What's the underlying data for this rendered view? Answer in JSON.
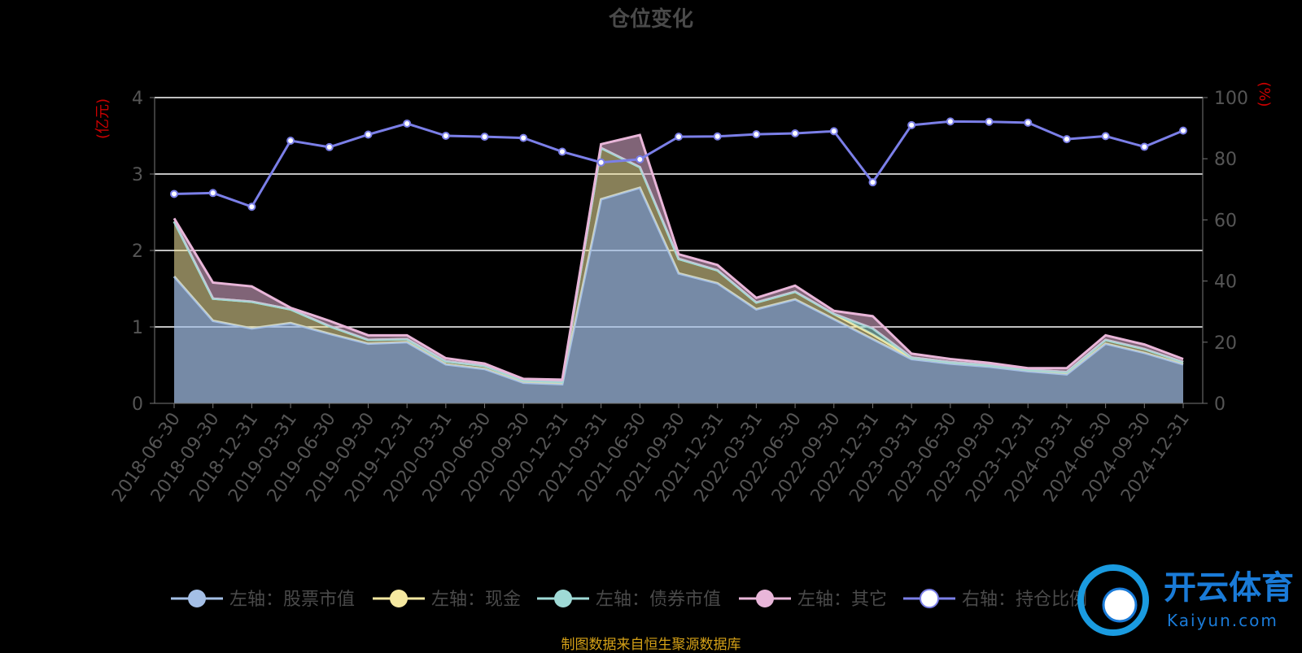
{
  "chart_data": {
    "type": "area",
    "title": "仓位变化",
    "y_left_unit": "(亿元)",
    "y_right_unit": "(%)",
    "y_left_range": [
      0,
      4
    ],
    "y_left_ticks": [
      "0",
      "1",
      "2",
      "3",
      "4"
    ],
    "y_right_range": [
      0,
      100
    ],
    "y_right_ticks": [
      "0",
      "20",
      "40",
      "60",
      "80",
      "100"
    ],
    "grid": true,
    "legend_position": "bottom",
    "categories": [
      "2018-06-30",
      "2018-09-30",
      "2018-12-31",
      "2019-03-31",
      "2019-06-30",
      "2019-09-30",
      "2019-12-31",
      "2020-03-31",
      "2020-06-30",
      "2020-09-30",
      "2020-12-31",
      "2021-03-31",
      "2021-06-30",
      "2021-09-30",
      "2021-12-31",
      "2022-03-31",
      "2022-06-30",
      "2022-09-30",
      "2022-12-31",
      "2023-03-31",
      "2023-06-30",
      "2023-09-30",
      "2023-12-31",
      "2024-03-31",
      "2024-06-30",
      "2024-09-30",
      "2024-12-31"
    ],
    "series": [
      {
        "name": "左轴：股票市值",
        "axis": "left",
        "stack": true,
        "color": "#a4bfe6",
        "values": [
          1.66,
          1.08,
          0.98,
          1.05,
          0.91,
          0.78,
          0.8,
          0.51,
          0.45,
          0.27,
          0.25,
          2.67,
          2.82,
          1.7,
          1.57,
          1.23,
          1.36,
          1.1,
          0.84,
          0.58,
          0.52,
          0.48,
          0.42,
          0.38,
          0.78,
          0.66,
          0.51
        ]
      },
      {
        "name": "左轴：现金",
        "axis": "left",
        "stack": true,
        "color": "#f5e8a0",
        "values": [
          0.72,
          0.29,
          0.35,
          0.18,
          0.1,
          0.05,
          0.04,
          0.04,
          0.04,
          0.03,
          0.03,
          0.67,
          0.27,
          0.19,
          0.17,
          0.09,
          0.1,
          0.07,
          0.06,
          0.02,
          0.02,
          0.02,
          0.02,
          0.03,
          0.05,
          0.05,
          0.03
        ]
      },
      {
        "name": "左轴：债券市值",
        "axis": "left",
        "stack": true,
        "color": "#9fdad6",
        "values": [
          0.0,
          0.0,
          0.0,
          0.0,
          0.0,
          0.0,
          0.0,
          0.0,
          0.0,
          0.0,
          0.0,
          0.0,
          0.0,
          0.0,
          0.0,
          0.0,
          0.0,
          0.0,
          0.08,
          0.0,
          0.0,
          0.0,
          0.0,
          0.0,
          0.0,
          0.0,
          0.0
        ]
      },
      {
        "name": "左轴：其它",
        "axis": "left",
        "stack": true,
        "color": "#e9b6d9",
        "values": [
          0.04,
          0.21,
          0.2,
          0.02,
          0.07,
          0.06,
          0.05,
          0.04,
          0.03,
          0.02,
          0.03,
          0.05,
          0.42,
          0.06,
          0.07,
          0.06,
          0.08,
          0.04,
          0.16,
          0.05,
          0.04,
          0.03,
          0.02,
          0.05,
          0.06,
          0.06,
          0.04
        ]
      },
      {
        "name": "右轴：持仓比例",
        "axis": "right",
        "color": "#7b7fe8",
        "values": [
          68.5,
          68.8,
          64.3,
          85.9,
          83.8,
          87.9,
          91.5,
          87.5,
          87.2,
          86.8,
          82.3,
          78.8,
          79.8,
          87.2,
          87.3,
          88.0,
          88.3,
          89.0,
          72.3,
          91.0,
          92.2,
          92.1,
          91.8,
          86.4,
          87.4,
          83.9,
          89.2
        ]
      }
    ],
    "source_note": "制图数据来自恒生聚源数据库"
  },
  "watermark": {
    "cn": "开云体育",
    "en": "Kaiyun.com"
  },
  "colors": {
    "background": "#000000",
    "grid": "#ffffff",
    "unit_label": "#cc0000",
    "source_text": "#d4a017",
    "logo": "#1a7bd8"
  }
}
